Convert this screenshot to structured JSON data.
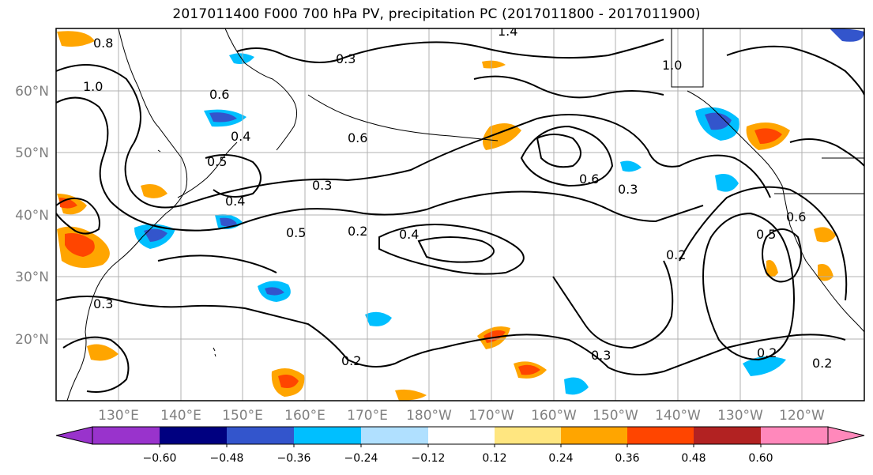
{
  "title": "2017011400 F000 700 hPa PV, precipitation PC (2017011800 - 2017011900)",
  "map": {
    "lat_labels": [
      "60°N",
      "50°N",
      "40°N",
      "30°N",
      "20°N"
    ],
    "lon_labels": [
      "130°E",
      "140°E",
      "150°E",
      "160°E",
      "170°E",
      "180°W",
      "170°W",
      "160°W",
      "150°W",
      "140°W",
      "130°W",
      "120°W"
    ],
    "contour_labels": [
      "0.8",
      "0.6",
      "1.0",
      "0.3",
      "0.4",
      "0.6",
      "0.5",
      "0.3",
      "0.4",
      "0.2",
      "0.4",
      "0.5",
      "0.3",
      "0.2",
      "1.4",
      "1.0",
      "0.6",
      "0.3",
      "0.2",
      "0.3",
      "0.2",
      "0.5",
      "0.6",
      "0.2"
    ]
  },
  "colorbar": {
    "tick_labels": [
      "−0.60",
      "−0.48",
      "−0.36",
      "−0.24",
      "−0.12",
      "0.12",
      "0.24",
      "0.36",
      "0.48",
      "0.60"
    ],
    "colors": [
      "#9933cc",
      "#000080",
      "#3355cc",
      "#00bfff",
      "#b0e0ff",
      "#ffffff",
      "#ffe680",
      "#ffa500",
      "#ff4500",
      "#b22222",
      "#ff88bb"
    ]
  }
}
